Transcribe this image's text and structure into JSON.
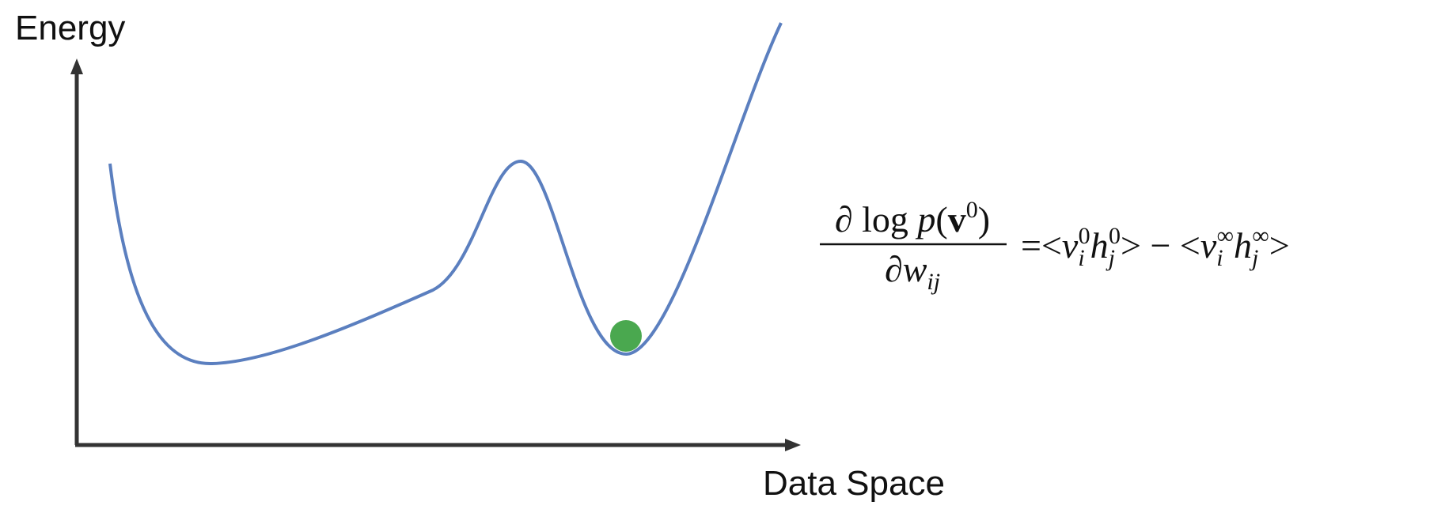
{
  "axis": {
    "y_label": "Energy",
    "x_label": "Data Space"
  },
  "equation": {
    "numerator": {
      "partial_log": "∂ log ",
      "p": "p",
      "open": "(",
      "v": "v",
      "sup": "0",
      "close": ")"
    },
    "denominator": {
      "partial": "∂",
      "w": "w",
      "sub": "ij"
    },
    "terms": [
      {
        "open": "=<",
        "v": "v",
        "v_sub": "i",
        "v_sup": "0",
        "h": "h",
        "h_sub": "j",
        "h_sup": "0",
        "close": ">"
      },
      {
        "open": " − <",
        "v": "v",
        "v_sub": "i",
        "v_sup": "∞",
        "h": "h",
        "h_sub": "j",
        "h_sup": "∞",
        "close": ">"
      }
    ]
  }
}
